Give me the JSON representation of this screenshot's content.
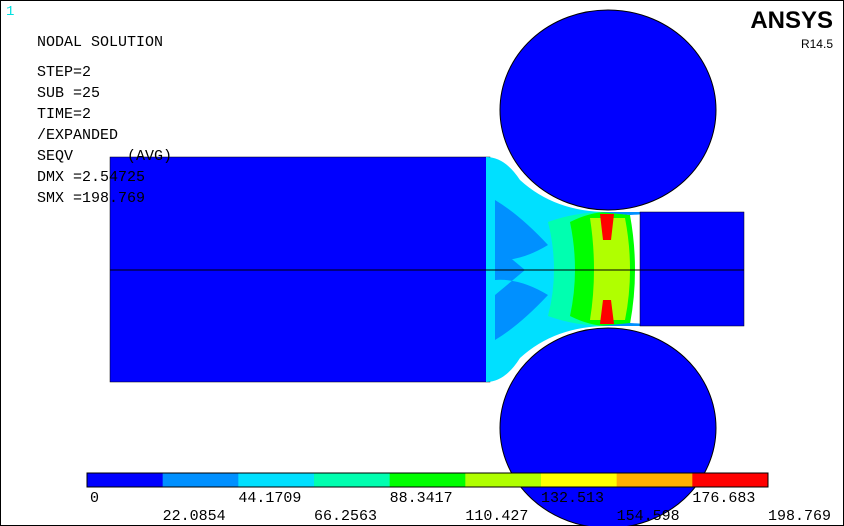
{
  "header": {
    "window_number": "1",
    "brand": "ANSYS",
    "version": "R14.5"
  },
  "info": {
    "lines": [
      "NODAL SOLUTION",
      "STEP=2",
      "SUB =25",
      "TIME=2",
      "/EXPANDED",
      "SEQV      (AVG)",
      "DMX =2.54725",
      "SMX =198.769"
    ]
  },
  "legend": {
    "colors": [
      "#0000ff",
      "#0090ff",
      "#00e0ff",
      "#00ffb0",
      "#00ff00",
      "#b0ff00",
      "#ffff00",
      "#ffb000",
      "#ff0000"
    ],
    "labels": [
      "0",
      "22.0854",
      "44.1709",
      "66.2563",
      "88.3417",
      "110.427",
      "132.513",
      "154.598",
      "176.683",
      "198.769"
    ]
  }
}
